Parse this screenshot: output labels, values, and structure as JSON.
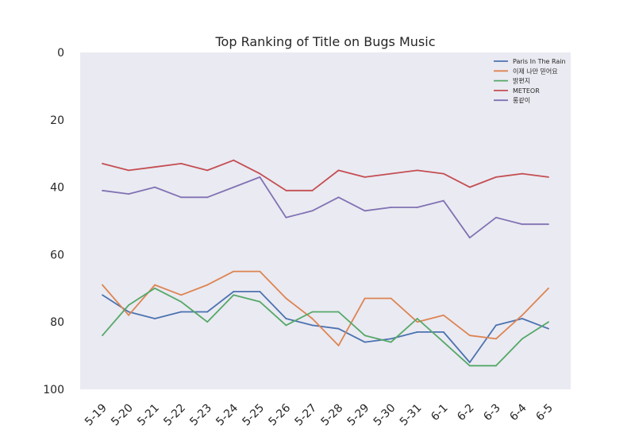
{
  "chart_data": {
    "type": "line",
    "title": "Top Ranking of Title on Bugs Music",
    "xlabel": "",
    "ylabel": "",
    "ylim": [
      0,
      100
    ],
    "y_inverted": true,
    "yticks": [
      0,
      20,
      40,
      60,
      80,
      100
    ],
    "grid": false,
    "legend_position": "top-right",
    "background": "#eaeaf2",
    "categories": [
      "5-19",
      "5-20",
      "5-21",
      "5-22",
      "5-23",
      "5-24",
      "5-25",
      "5-26",
      "5-27",
      "5-28",
      "5-29",
      "5-30",
      "5-31",
      "6-1",
      "6-2",
      "6-3",
      "6-4",
      "6-5"
    ],
    "series": [
      {
        "name": "Paris In The Rain",
        "color": "#4c72b0",
        "values": [
          72,
          77,
          79,
          77,
          77,
          71,
          71,
          79,
          81,
          82,
          86,
          85,
          83,
          83,
          92,
          81,
          79,
          82
        ]
      },
      {
        "name": "이제 나만 믿어요",
        "color": "#dd8452",
        "values": [
          69,
          78,
          69,
          72,
          69,
          65,
          65,
          73,
          79,
          87,
          73,
          73,
          80,
          78,
          84,
          85,
          78,
          70
        ]
      },
      {
        "name": "밝편지",
        "color": "#55a868",
        "values": [
          84,
          75,
          70,
          74,
          80,
          72,
          74,
          81,
          77,
          77,
          84,
          86,
          79,
          86,
          93,
          93,
          85,
          80
        ]
      },
      {
        "name": "METEOR",
        "color": "#c44e52",
        "values": [
          33,
          35,
          34,
          33,
          35,
          32,
          36,
          41,
          41,
          35,
          37,
          36,
          35,
          36,
          40,
          37,
          36,
          37
        ]
      },
      {
        "name": "롱같이",
        "color": "#8172b3",
        "values": [
          41,
          42,
          40,
          43,
          43,
          40,
          37,
          49,
          47,
          43,
          47,
          46,
          46,
          44,
          55,
          49,
          51,
          51
        ]
      }
    ]
  }
}
